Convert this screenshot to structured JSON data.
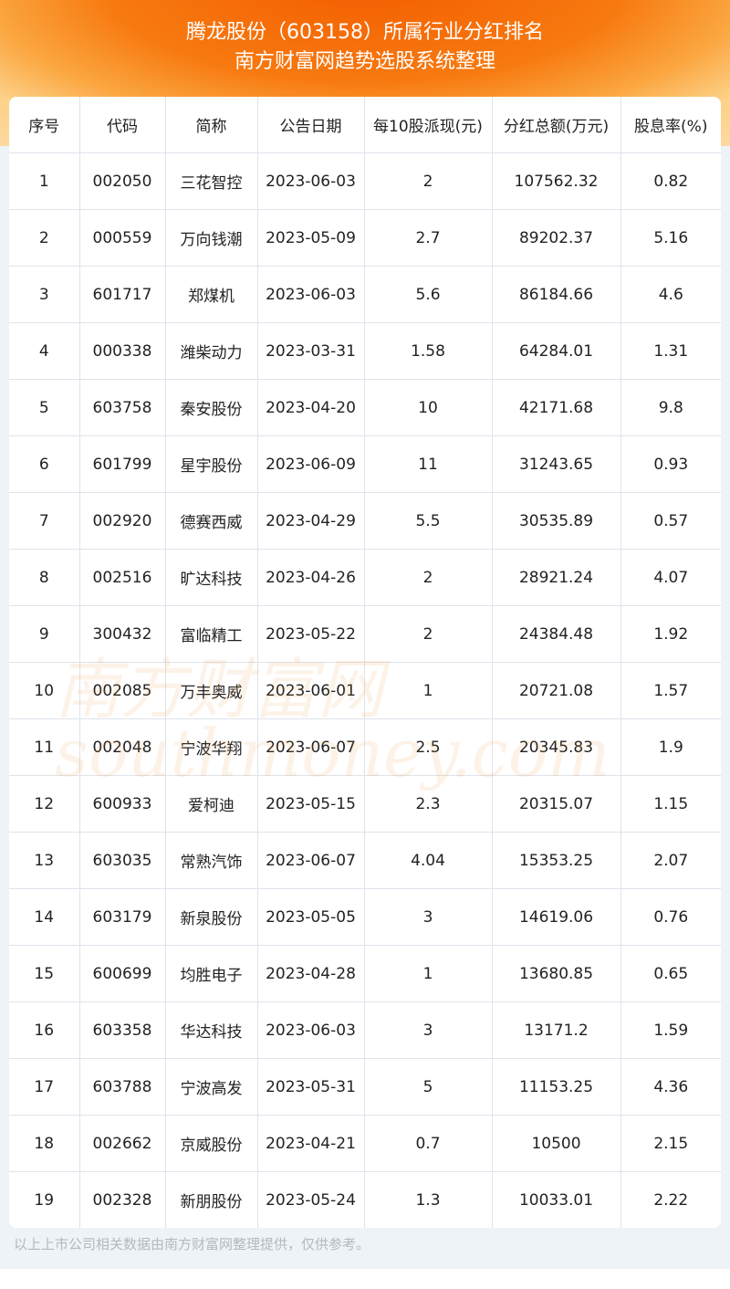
{
  "header": {
    "title_line1": "腾龙股份（603158）所属行业分红排名",
    "title_line2": "南方财富网趋势选股系统整理"
  },
  "table": {
    "columns": [
      "序号",
      "代码",
      "简称",
      "公告日期",
      "每10股派现(元)",
      "分红总额(万元)",
      "股息率(%)"
    ],
    "rows": [
      [
        "1",
        "002050",
        "三花智控",
        "2023-06-03",
        "2",
        "107562.32",
        "0.82"
      ],
      [
        "2",
        "000559",
        "万向钱潮",
        "2023-05-09",
        "2.7",
        "89202.37",
        "5.16"
      ],
      [
        "3",
        "601717",
        "郑煤机",
        "2023-06-03",
        "5.6",
        "86184.66",
        "4.6"
      ],
      [
        "4",
        "000338",
        "潍柴动力",
        "2023-03-31",
        "1.58",
        "64284.01",
        "1.31"
      ],
      [
        "5",
        "603758",
        "秦安股份",
        "2023-04-20",
        "10",
        "42171.68",
        "9.8"
      ],
      [
        "6",
        "601799",
        "星宇股份",
        "2023-06-09",
        "11",
        "31243.65",
        "0.93"
      ],
      [
        "7",
        "002920",
        "德赛西威",
        "2023-04-29",
        "5.5",
        "30535.89",
        "0.57"
      ],
      [
        "8",
        "002516",
        "旷达科技",
        "2023-04-26",
        "2",
        "28921.24",
        "4.07"
      ],
      [
        "9",
        "300432",
        "富临精工",
        "2023-05-22",
        "2",
        "24384.48",
        "1.92"
      ],
      [
        "10",
        "002085",
        "万丰奥威",
        "2023-06-01",
        "1",
        "20721.08",
        "1.57"
      ],
      [
        "11",
        "002048",
        "宁波华翔",
        "2023-06-07",
        "2.5",
        "20345.83",
        "1.9"
      ],
      [
        "12",
        "600933",
        "爱柯迪",
        "2023-05-15",
        "2.3",
        "20315.07",
        "1.15"
      ],
      [
        "13",
        "603035",
        "常熟汽饰",
        "2023-06-07",
        "4.04",
        "15353.25",
        "2.07"
      ],
      [
        "14",
        "603179",
        "新泉股份",
        "2023-05-05",
        "3",
        "14619.06",
        "0.76"
      ],
      [
        "15",
        "600699",
        "均胜电子",
        "2023-04-28",
        "1",
        "13680.85",
        "0.65"
      ],
      [
        "16",
        "603358",
        "华达科技",
        "2023-06-03",
        "3",
        "13171.2",
        "1.59"
      ],
      [
        "17",
        "603788",
        "宁波高发",
        "2023-05-31",
        "5",
        "11153.25",
        "4.36"
      ],
      [
        "18",
        "002662",
        "京威股份",
        "2023-04-21",
        "0.7",
        "10500",
        "2.15"
      ],
      [
        "19",
        "002328",
        "新朋股份",
        "2023-05-24",
        "1.3",
        "10033.01",
        "2.22"
      ]
    ]
  },
  "watermark": {
    "cn": "南方财富网",
    "en": "southmoney.com"
  },
  "footer": {
    "note": "以上上市公司相关数据由南方财富网整理提供，仅供参考。"
  },
  "colors": {
    "accent": "#f76a08",
    "page_bg": "#eef3f8",
    "border": "#dfe3ea"
  }
}
